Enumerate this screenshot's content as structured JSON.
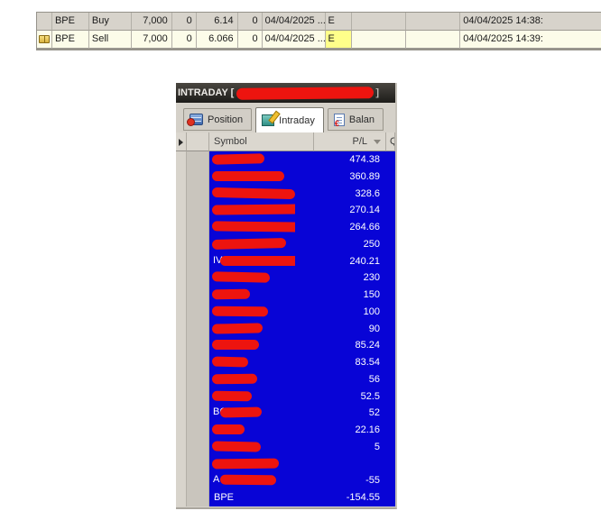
{
  "colors": {
    "selection_blue": "#0804d6",
    "scribble_red": "#ed140f",
    "flag_highlight": "#ffff8a"
  },
  "orders": {
    "rows": [
      {
        "has_icon": false,
        "flag_highlighted": false,
        "cells": [
          "BPE",
          "Buy",
          "7,000",
          "0",
          "6.14",
          "0",
          "04/04/2025 ...",
          "E",
          "",
          "",
          "04/04/2025 14:38:"
        ]
      },
      {
        "has_icon": true,
        "flag_highlighted": true,
        "cells": [
          "BPE",
          "Sell",
          "7,000",
          "0",
          "6.066",
          "0",
          "04/04/2025 ...",
          "E",
          "",
          "",
          "04/04/2025 14:39:"
        ]
      }
    ]
  },
  "intraday_window": {
    "title_prefix": "INTRADAY [",
    "title_suffix": "]",
    "tabs": [
      {
        "label": "Position",
        "icon": "position-icon",
        "active": false
      },
      {
        "label": "Intraday",
        "icon": "intraday-icon",
        "active": true
      },
      {
        "label": "Balan",
        "icon": "balance-icon",
        "active": false
      }
    ],
    "grid": {
      "columns": [
        {
          "label": "Symbol",
          "sort": ""
        },
        {
          "label": "P/L",
          "sort": "desc"
        },
        {
          "label": "Q",
          "sort": ""
        }
      ],
      "rows": [
        {
          "symbol": "",
          "redacted": true,
          "peek": "",
          "scribble_w": 58,
          "pl": "474.38"
        },
        {
          "symbol": "",
          "redacted": true,
          "peek": "",
          "scribble_w": 80,
          "pl": "360.89"
        },
        {
          "symbol": "",
          "redacted": true,
          "peek": "",
          "scribble_w": 92,
          "pl": "328.6"
        },
        {
          "symbol": "",
          "redacted": true,
          "peek": "",
          "scribble_w": 100,
          "pl": "270.14"
        },
        {
          "symbol": "",
          "redacted": true,
          "peek": "",
          "scribble_w": 106,
          "pl": "264.66"
        },
        {
          "symbol": "",
          "redacted": true,
          "peek": "",
          "scribble_w": 82,
          "pl": "250"
        },
        {
          "symbol": "",
          "redacted": true,
          "peek": "IV",
          "scribble_w": 88,
          "pl": "240.21"
        },
        {
          "symbol": "",
          "redacted": true,
          "peek": "",
          "scribble_w": 64,
          "pl": "230"
        },
        {
          "symbol": "",
          "redacted": true,
          "peek": "",
          "scribble_w": 42,
          "pl": "150"
        },
        {
          "symbol": "",
          "redacted": true,
          "peek": "",
          "scribble_w": 62,
          "pl": "100"
        },
        {
          "symbol": "",
          "redacted": true,
          "peek": "",
          "scribble_w": 56,
          "pl": "90"
        },
        {
          "symbol": "",
          "redacted": true,
          "peek": "",
          "scribble_w": 52,
          "pl": "85.24"
        },
        {
          "symbol": "",
          "redacted": true,
          "peek": "",
          "scribble_w": 40,
          "pl": "83.54"
        },
        {
          "symbol": "",
          "redacted": true,
          "peek": "",
          "scribble_w": 50,
          "pl": "56"
        },
        {
          "symbol": "",
          "redacted": true,
          "peek": "",
          "scribble_w": 44,
          "pl": "52.5"
        },
        {
          "symbol": "",
          "redacted": true,
          "peek": "BC",
          "scribble_w": 46,
          "pl": "52"
        },
        {
          "symbol": "",
          "redacted": true,
          "peek": "",
          "scribble_w": 36,
          "pl": "22.16"
        },
        {
          "symbol": "",
          "redacted": true,
          "peek": "",
          "scribble_w": 54,
          "pl": "5"
        },
        {
          "symbol": "",
          "redacted": true,
          "peek": "",
          "scribble_w": 74,
          "pl": ""
        },
        {
          "symbol": "",
          "redacted": true,
          "peek": "A",
          "scribble_w": 62,
          "pl": "-55"
        },
        {
          "symbol": "BPE",
          "redacted": false,
          "peek": "",
          "scribble_w": 0,
          "pl": "-154.55"
        }
      ]
    }
  }
}
